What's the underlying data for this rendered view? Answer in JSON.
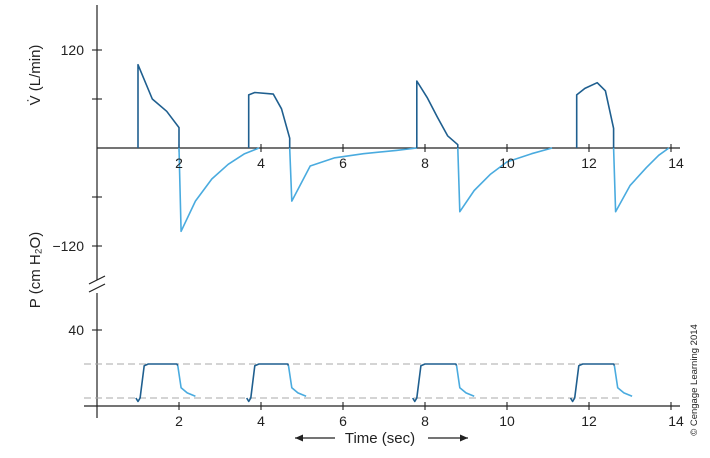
{
  "colors": {
    "inspiration": "#1f5f8f",
    "expiration": "#4aabdf",
    "axis": "#222222",
    "reference": "#aaaaaa"
  },
  "copyright": "© Cengage Learning 2014",
  "xaxis": {
    "label": "Time (sec)",
    "arrow_left": "←——",
    "arrow_right": "——→"
  },
  "chart_data": [
    {
      "type": "line",
      "panel": "flow",
      "ylabel": "V̇ (L/min)",
      "xlim": [
        0,
        14.2
      ],
      "ylim": [
        -150,
        150
      ],
      "xticks": [
        2,
        4,
        6,
        8,
        10,
        12,
        14
      ],
      "yticks_labeled": [
        120,
        -120
      ],
      "yticks_minor": [
        60,
        -60
      ],
      "tick_labels": {
        "x": [
          "2",
          "4",
          "6",
          "8",
          "10",
          "12",
          "14"
        ],
        "y": [
          "120",
          "−120"
        ]
      },
      "grid": false,
      "series": [
        {
          "phase": "inspiration",
          "x": [
            1.0,
            1.0,
            1.35,
            1.7,
            2.0,
            2.0
          ],
          "y": [
            0,
            102,
            60,
            45,
            25,
            0
          ]
        },
        {
          "phase": "expiration",
          "x": [
            2.0,
            2.05,
            2.4,
            2.8,
            3.2,
            3.6,
            3.95
          ],
          "y": [
            0,
            -102,
            -65,
            -38,
            -20,
            -7,
            0
          ]
        },
        {
          "phase": "inspiration",
          "x": [
            3.7,
            3.7,
            3.85,
            4.3,
            4.5,
            4.7,
            4.7
          ],
          "y": [
            0,
            65,
            68,
            66,
            48,
            12,
            0
          ]
        },
        {
          "phase": "expiration",
          "x": [
            4.7,
            4.75,
            5.2,
            5.8,
            6.5,
            7.3,
            7.8
          ],
          "y": [
            0,
            -65,
            -22,
            -12,
            -7,
            -3,
            0
          ]
        },
        {
          "phase": "inspiration",
          "x": [
            7.8,
            7.8,
            8.05,
            8.3,
            8.55,
            8.8,
            8.8
          ],
          "y": [
            0,
            82,
            62,
            38,
            15,
            4,
            0
          ]
        },
        {
          "phase": "expiration",
          "x": [
            8.8,
            8.85,
            9.2,
            9.6,
            10.0,
            10.6,
            11.1
          ],
          "y": [
            0,
            -78,
            -52,
            -32,
            -17,
            -7,
            0
          ]
        },
        {
          "phase": "inspiration",
          "x": [
            11.7,
            11.7,
            11.9,
            12.2,
            12.4,
            12.6,
            12.6
          ],
          "y": [
            0,
            65,
            73,
            80,
            70,
            24,
            0
          ]
        },
        {
          "phase": "expiration",
          "x": [
            12.6,
            12.65,
            13.0,
            13.4,
            13.7,
            13.95
          ],
          "y": [
            0,
            -78,
            -46,
            -24,
            -9,
            0
          ]
        }
      ]
    },
    {
      "type": "line",
      "panel": "pressure",
      "ylabel": "P (cm H₂O)",
      "xlim": [
        0,
        14.2
      ],
      "ylim": [
        -8,
        60
      ],
      "xticks": [
        2,
        4,
        6,
        8,
        10,
        12,
        14
      ],
      "yticks_labeled": [
        40
      ],
      "tick_labels": {
        "x": [
          "2",
          "4",
          "6",
          "8",
          "10",
          "12",
          "14"
        ],
        "y": [
          "40"
        ]
      },
      "reference_lines_y": [
        20,
        0
      ],
      "grid": false,
      "series": [
        {
          "phase": "inspiration",
          "x": [
            0.95,
            1.0,
            1.05,
            1.15,
            1.25,
            1.95,
            1.97
          ],
          "y": [
            0,
            -2,
            0,
            19,
            20,
            20,
            19
          ]
        },
        {
          "phase": "expiration",
          "x": [
            1.97,
            2.05,
            2.2,
            2.4
          ],
          "y": [
            19,
            6,
            3,
            1
          ]
        },
        {
          "phase": "inspiration",
          "x": [
            3.65,
            3.7,
            3.75,
            3.85,
            3.95,
            4.65,
            4.67
          ],
          "y": [
            0,
            -2,
            0,
            19,
            20,
            20,
            19
          ]
        },
        {
          "phase": "expiration",
          "x": [
            4.67,
            4.75,
            4.9,
            5.1
          ],
          "y": [
            19,
            6,
            3,
            1
          ]
        },
        {
          "phase": "inspiration",
          "x": [
            7.7,
            7.75,
            7.8,
            7.9,
            8.0,
            8.75,
            8.77
          ],
          "y": [
            0,
            -2,
            0,
            19,
            20,
            20,
            19
          ]
        },
        {
          "phase": "expiration",
          "x": [
            8.77,
            8.85,
            9.0,
            9.2
          ],
          "y": [
            19,
            6,
            3,
            1
          ]
        },
        {
          "phase": "inspiration",
          "x": [
            11.55,
            11.6,
            11.65,
            11.75,
            11.85,
            12.6,
            12.62
          ],
          "y": [
            0,
            -2,
            0,
            19,
            20,
            20,
            19
          ]
        },
        {
          "phase": "expiration",
          "x": [
            12.62,
            12.7,
            12.85,
            13.05
          ],
          "y": [
            19,
            6,
            3,
            1
          ]
        }
      ]
    }
  ]
}
